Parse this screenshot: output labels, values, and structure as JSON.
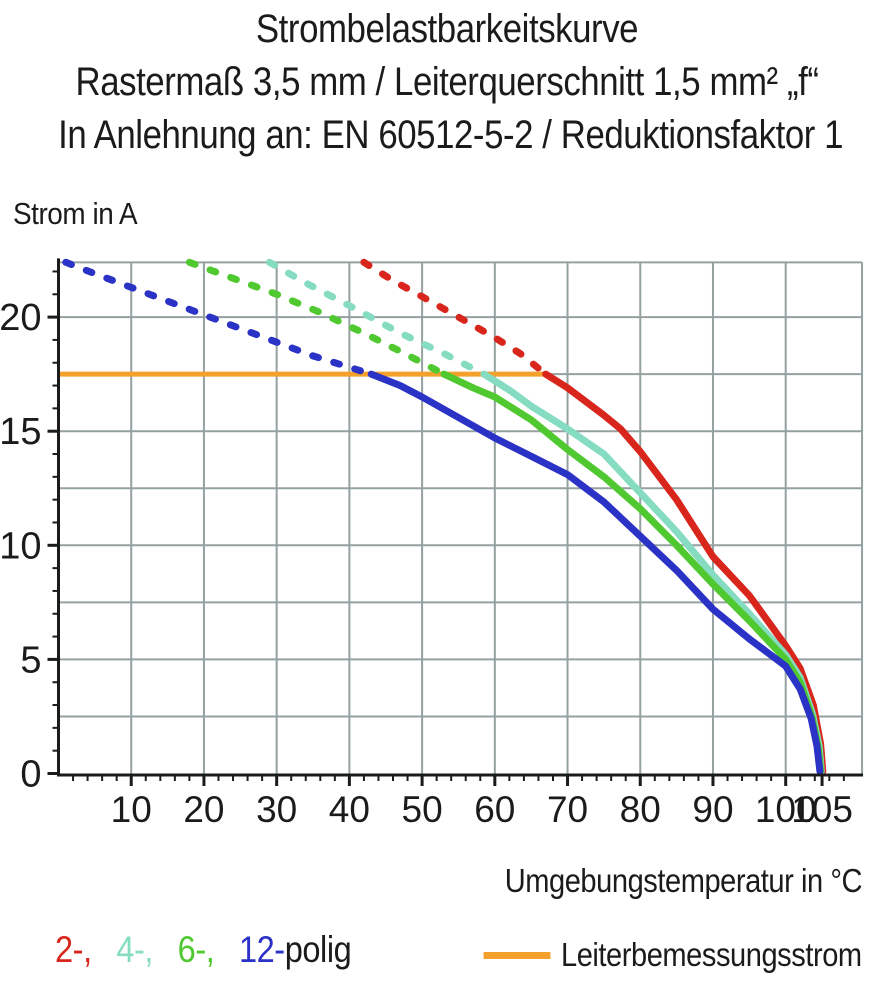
{
  "title": {
    "line1": "Strombelastbarkeitskurve",
    "line2": "Rastermaß 3,5 mm / Leiterquerschnitt 1,5 mm² „f“",
    "line3": "In Anlehnung an: EN 60512-5-2 / Reduktionsfaktor 1"
  },
  "y_axis_label": "Strom in A",
  "x_axis_label": "Umgebungstemperatur in °C",
  "legend": {
    "poles": [
      {
        "label": "2-,",
        "color": "#d9261c"
      },
      {
        "label": "4-,",
        "color": "#85dcc1"
      },
      {
        "label": "6-,",
        "color": "#4fc92f"
      },
      {
        "label": "12-",
        "color": "#2b32c6"
      }
    ],
    "suffix": "polig",
    "rated": {
      "label": "Leiterbemessungsstrom",
      "color": "#f4a02c"
    }
  },
  "colors": {
    "grid": "#95a0a0",
    "axis": "#1b1b1b",
    "text": "#1b1b1b",
    "background": "#ffffff"
  },
  "chart_data": {
    "type": "line",
    "title": "Strombelastbarkeitskurve",
    "xlabel": "Umgebungstemperatur in °C",
    "ylabel": "Strom in A",
    "xlim": [
      0,
      110.5
    ],
    "ylim": [
      0,
      22.4
    ],
    "x_major_ticks": [
      10,
      20,
      30,
      40,
      50,
      60,
      70,
      80,
      90,
      100,
      105
    ],
    "x_minor_step": 2,
    "y_major_ticks": [
      0,
      5,
      10,
      15,
      20
    ],
    "y_minor_step": 1,
    "grid": {
      "x_step": 10,
      "y_step": 2.5,
      "on": true
    },
    "rated_current": {
      "label": "Leiterbemessungsstrom",
      "value": 17.5,
      "x_start": 0,
      "x_end": 67.2,
      "color": "#f4a02c"
    },
    "series": [
      {
        "name": "2-polig",
        "color": "#d9261c",
        "dashed": [
          [
            42,
            22.4
          ],
          [
            46,
            21.6
          ],
          [
            50,
            20.9
          ],
          [
            55,
            20.0
          ],
          [
            60,
            19.1
          ],
          [
            63.5,
            18.4
          ],
          [
            67,
            17.5
          ]
        ],
        "solid": [
          [
            67,
            17.5
          ],
          [
            70,
            16.9
          ],
          [
            75,
            15.7
          ],
          [
            77.3,
            15.1
          ],
          [
            80,
            14.1
          ],
          [
            85,
            12.0
          ],
          [
            90,
            9.5
          ],
          [
            95,
            7.8
          ],
          [
            100,
            5.6
          ],
          [
            102,
            4.6
          ],
          [
            103.8,
            3.0
          ],
          [
            104.8,
            1.3
          ],
          [
            105.1,
            0.1
          ]
        ]
      },
      {
        "name": "4-polig",
        "color": "#85dcc1",
        "dashed": [
          [
            29,
            22.4
          ],
          [
            34,
            21.5
          ],
          [
            40,
            20.5
          ],
          [
            47,
            19.3
          ],
          [
            53,
            18.4
          ],
          [
            58.5,
            17.5
          ]
        ],
        "solid": [
          [
            58.5,
            17.5
          ],
          [
            62,
            16.8
          ],
          [
            65,
            16.1
          ],
          [
            70,
            15.1
          ],
          [
            75,
            14.0
          ],
          [
            80,
            12.3
          ],
          [
            85,
            10.6
          ],
          [
            90,
            8.7
          ],
          [
            95,
            7.0
          ],
          [
            100,
            5.2
          ],
          [
            102,
            4.2
          ],
          [
            103.7,
            2.6
          ],
          [
            104.6,
            1.2
          ],
          [
            104.9,
            0.1
          ]
        ]
      },
      {
        "name": "6-polig",
        "color": "#4fc92f",
        "dashed": [
          [
            18,
            22.4
          ],
          [
            24,
            21.7
          ],
          [
            30,
            21.0
          ],
          [
            36,
            20.2
          ],
          [
            42,
            19.3
          ],
          [
            47,
            18.5
          ],
          [
            53,
            17.5
          ]
        ],
        "solid": [
          [
            53,
            17.5
          ],
          [
            57,
            16.9
          ],
          [
            60,
            16.5
          ],
          [
            65,
            15.5
          ],
          [
            70,
            14.2
          ],
          [
            75,
            13.0
          ],
          [
            80,
            11.6
          ],
          [
            85,
            10.0
          ],
          [
            90,
            8.3
          ],
          [
            95,
            6.7
          ],
          [
            100,
            5.0
          ],
          [
            102,
            4.0
          ],
          [
            103.6,
            2.5
          ],
          [
            104.5,
            1.1
          ],
          [
            104.8,
            0.1
          ]
        ]
      },
      {
        "name": "12-polig",
        "color": "#2b32c6",
        "dashed": [
          [
            1,
            22.4
          ],
          [
            5,
            21.9
          ],
          [
            10,
            21.3
          ],
          [
            15,
            20.7
          ],
          [
            20,
            20.1
          ],
          [
            25,
            19.5
          ],
          [
            30,
            18.9
          ],
          [
            35,
            18.3
          ],
          [
            40,
            17.8
          ],
          [
            43,
            17.5
          ]
        ],
        "solid": [
          [
            43,
            17.5
          ],
          [
            47,
            17.0
          ],
          [
            50,
            16.5
          ],
          [
            55,
            15.6
          ],
          [
            60,
            14.7
          ],
          [
            65,
            13.9
          ],
          [
            70,
            13.1
          ],
          [
            75,
            11.9
          ],
          [
            80,
            10.4
          ],
          [
            85,
            8.9
          ],
          [
            90,
            7.2
          ],
          [
            95,
            5.9
          ],
          [
            100,
            4.7
          ],
          [
            102,
            3.7
          ],
          [
            103.5,
            2.4
          ],
          [
            104.3,
            1.2
          ],
          [
            104.7,
            0.1
          ]
        ]
      }
    ]
  }
}
